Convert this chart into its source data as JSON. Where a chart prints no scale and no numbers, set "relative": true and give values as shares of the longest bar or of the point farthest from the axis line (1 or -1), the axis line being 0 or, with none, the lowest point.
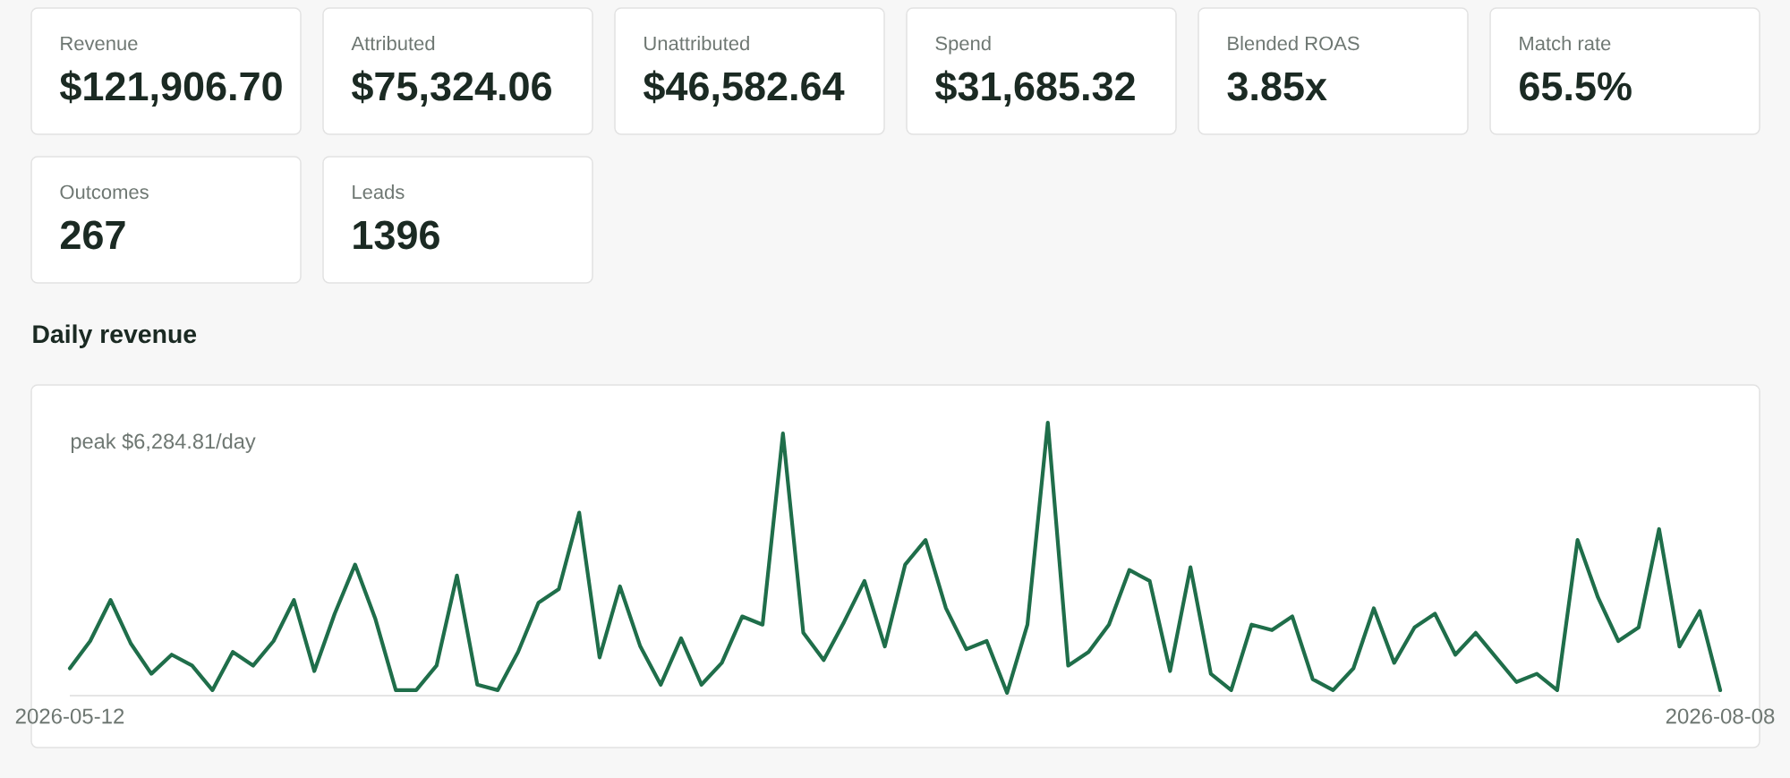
{
  "chart_data": [
    {
      "type": "other",
      "categories": [
        "Revenue",
        "Attributed",
        "Unattributed",
        "Spend",
        "Blended ROAS",
        "Match rate",
        "Outcomes",
        "Leads"
      ],
      "value_labels": [
        "$121,906.70",
        "$75,324.06",
        "$46,582.64",
        "$31,685.32",
        "3.85x",
        "65.5%",
        "267",
        "1396"
      ]
    },
    {
      "type": "line",
      "title": "Daily revenue",
      "categories": [
        "2026-05-12",
        null,
        null,
        null,
        null,
        null,
        null,
        null,
        null,
        null,
        null,
        null,
        null,
        null,
        null,
        null,
        null,
        null,
        null,
        null,
        null,
        null,
        null,
        null,
        null,
        null,
        null,
        null,
        null,
        null,
        null,
        null,
        null,
        null,
        null,
        null,
        null,
        null,
        null,
        null,
        null,
        null,
        null,
        null,
        null,
        null,
        null,
        null,
        null,
        null,
        null,
        null,
        null,
        null,
        null,
        null,
        null,
        null,
        null,
        null,
        null,
        null,
        null,
        null,
        null,
        null,
        null,
        null,
        null,
        null,
        null,
        null,
        null,
        null,
        null,
        null,
        null,
        null,
        null,
        null,
        null,
        "2026-08-08"
      ],
      "values": [
        0.1,
        0.2,
        0.35,
        0.19,
        0.08,
        0.15,
        0.11,
        0.02,
        0.16,
        0.11,
        0.2,
        0.35,
        0.09,
        0.3,
        0.48,
        0.28,
        0.02,
        0.02,
        0.11,
        0.44,
        0.04,
        0.02,
        0.16,
        0.34,
        0.39,
        0.67,
        0.14,
        0.4,
        0.18,
        0.04,
        0.21,
        0.04,
        0.12,
        0.29,
        0.26,
        0.96,
        0.23,
        0.13,
        0.27,
        0.42,
        0.18,
        0.48,
        0.57,
        0.32,
        0.17,
        0.2,
        0.01,
        0.26,
        1.0,
        0.11,
        0.16,
        0.26,
        0.46,
        0.42,
        0.09,
        0.47,
        0.08,
        0.02,
        0.26,
        0.24,
        0.29,
        0.06,
        0.02,
        0.1,
        0.32,
        0.12,
        0.25,
        0.3,
        0.15,
        0.23,
        0.14,
        0.05,
        0.08,
        0.02,
        0.57,
        0.36,
        0.2,
        0.25,
        0.61,
        0.18,
        0.31,
        0.02
      ],
      "color": "#1f6e4a",
      "relative": true,
      "annotations": [
        "peak $6,284.81/day"
      ]
    }
  ]
}
